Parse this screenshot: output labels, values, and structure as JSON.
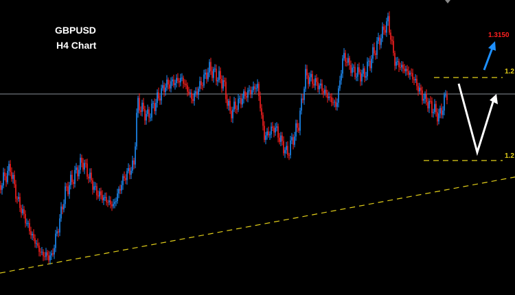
{
  "header": {
    "symbol": "GBPUSD",
    "timeframe": "H4 Chart"
  },
  "annotations": {
    "target": "1.3150",
    "upper_level": "1.2",
    "lower_level": "1.2"
  }
}
